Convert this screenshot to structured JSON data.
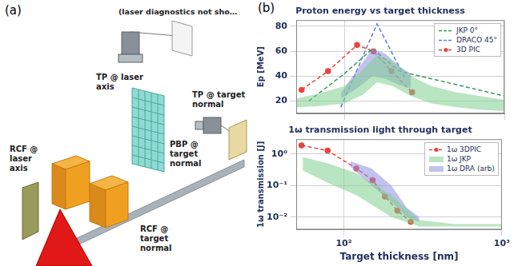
{
  "panel_a": {
    "label": "(a)",
    "labels": [
      "(laser diagnostics not sho…",
      "TP @ laser axis",
      "TP @ target normal",
      "RCF @ laser axis",
      "PBP @ target normal",
      "RCF @ target normal"
    ]
  },
  "panel_b": {
    "label": "(b)"
  },
  "chart_data": [
    {
      "type": "line",
      "title": "Proton energy vs target thickness",
      "y_label": "Ep [MeV]",
      "log": "x",
      "xlim": [
        50,
        1000
      ],
      "xticks": [
        100,
        1000
      ],
      "ylim": [
        10,
        85
      ],
      "yticks": [
        20,
        40,
        60,
        80
      ],
      "grid": true,
      "legend": "upper right",
      "tick_labels": "y",
      "series": [
        {
          "type": "band",
          "color": "#7fcf8f",
          "x": [
            50,
            70,
            100,
            130,
            160,
            200,
            260,
            350,
            500,
            700,
            1000
          ],
          "lower": [
            15,
            16,
            18,
            25,
            35,
            32,
            24,
            18,
            15,
            13,
            12
          ],
          "upper": [
            22,
            26,
            32,
            45,
            57,
            52,
            40,
            32,
            27,
            24,
            21
          ]
        },
        {
          "type": "band",
          "color": "#8f8fe0",
          "x": [
            95,
            120,
            150,
            180,
            220,
            260
          ],
          "lower": [
            22,
            30,
            40,
            38,
            33,
            30
          ],
          "upper": [
            26,
            45,
            62,
            58,
            48,
            42
          ]
        },
        {
          "name": "JKP 0°",
          "color": "#3a9a5b",
          "line_style": "dashed",
          "marker": "none",
          "x": [
            60,
            100,
            150,
            220,
            1000
          ],
          "values": [
            20,
            42,
            62,
            44,
            24
          ]
        },
        {
          "name": "DRACO 45°",
          "color": "#5b7fd1",
          "line_style": "dashed",
          "marker": "none",
          "x": [
            95,
            160,
            240
          ],
          "values": [
            15,
            82,
            38
          ]
        },
        {
          "name": "3D PIC",
          "color": "#e8453c",
          "line_style": "dashed",
          "marker": "circle",
          "x": [
            54,
            79,
            120,
            152,
            197,
            265
          ],
          "values": [
            29,
            44,
            65,
            60,
            44,
            27
          ]
        }
      ]
    },
    {
      "type": "line",
      "title": "1ω transmission light through target",
      "x_label": "Target thickness [nm]",
      "y_label": "1ω transmission [J]",
      "log": true,
      "xlim": [
        50,
        1000
      ],
      "xticks": [
        {
          "value": 100,
          "label": "10²"
        },
        {
          "value": 1000,
          "label": "10³"
        }
      ],
      "ylim": [
        0.004,
        3
      ],
      "yticks": [
        {
          "value": 0.01,
          "label": "10⁻²"
        },
        {
          "value": 0.1,
          "label": "10⁻¹"
        },
        {
          "value": 1,
          "label": "10⁰"
        }
      ],
      "grid": true,
      "legend": "upper right",
      "series": [
        {
          "name": "1ω 3DPIC",
          "color": "#e8453c",
          "line_style": "dashed",
          "marker": "circle",
          "x": [
            54,
            79,
            120,
            152,
            182,
            218,
            265
          ],
          "values": [
            1.9,
            1.3,
            0.35,
            0.15,
            0.045,
            0.016,
            0.007
          ]
        },
        {
          "name": "1ω JKP",
          "type": "band",
          "color": "#7fcf8f",
          "x": [
            55,
            80,
            120,
            200,
            300,
            500,
            1000
          ],
          "lower": [
            0.3,
            0.12,
            0.05,
            0.01,
            0.005,
            0.005,
            0.005
          ],
          "upper": [
            0.8,
            0.5,
            0.25,
            0.05,
            0.008,
            0.006,
            0.006
          ]
        },
        {
          "name": "1ω DRA (arb)",
          "type": "band",
          "color": "#8f8fe0",
          "x": [
            110,
            150,
            200,
            250,
            300
          ],
          "lower": [
            0.4,
            0.1,
            0.03,
            0.01,
            0.007
          ],
          "upper": [
            0.6,
            0.35,
            0.1,
            0.02,
            0.01
          ]
        }
      ]
    }
  ]
}
